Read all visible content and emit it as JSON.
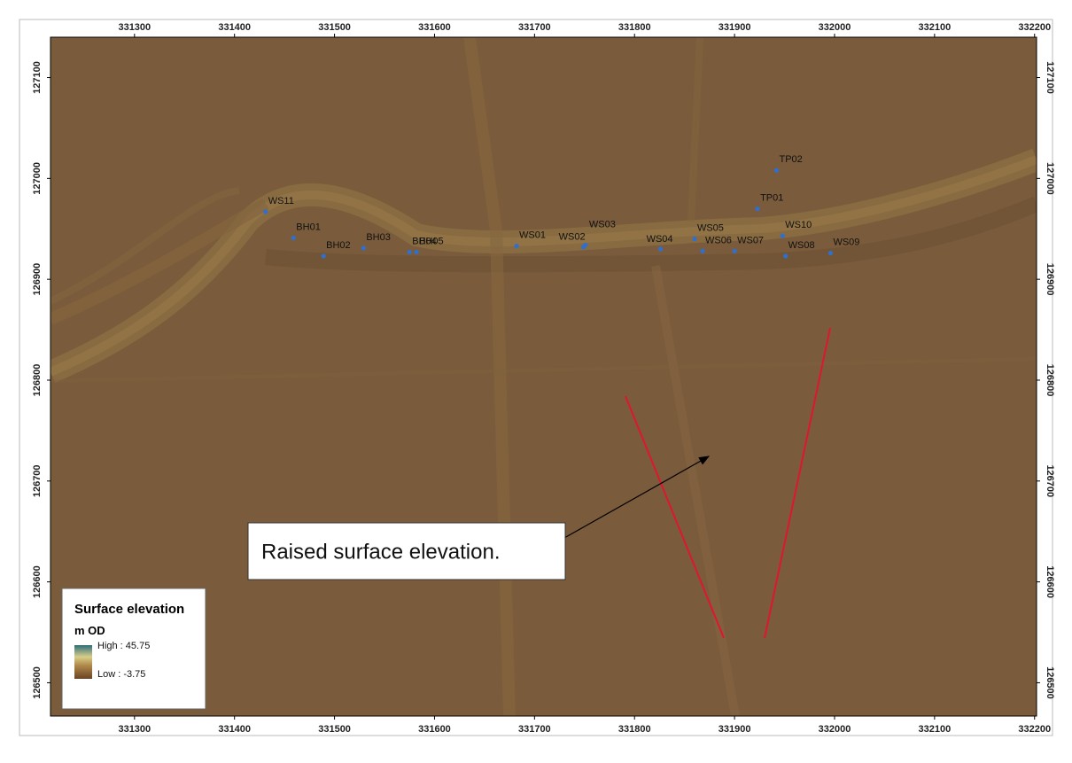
{
  "map": {
    "xlim": [
      331216,
      332202
    ],
    "ylim": [
      126467,
      127140
    ],
    "xticks": [
      331300,
      331400,
      331500,
      331600,
      331700,
      331800,
      331900,
      332000,
      332100,
      332200
    ],
    "yticks": [
      126500,
      126600,
      126700,
      126800,
      126900,
      127000,
      127100
    ],
    "points": [
      {
        "label": "WS11",
        "x": 331431,
        "y": 126967
      },
      {
        "label": "BH01",
        "x": 331459,
        "y": 126941
      },
      {
        "label": "BH02",
        "x": 331489,
        "y": 126923
      },
      {
        "label": "BH03",
        "x": 331529,
        "y": 126931
      },
      {
        "label": "BH04",
        "x": 331575,
        "y": 126927
      },
      {
        "label": "BH05",
        "x": 331582,
        "y": 126927
      },
      {
        "label": "WS01",
        "x": 331682,
        "y": 126933
      },
      {
        "label": "WS02",
        "x": 331749,
        "y": 126932
      },
      {
        "label": "WS03",
        "x": 331751,
        "y": 126934
      },
      {
        "label": "WS04",
        "x": 331826,
        "y": 126930
      },
      {
        "label": "WS05",
        "x": 331860,
        "y": 126940
      },
      {
        "label": "WS06",
        "x": 331868,
        "y": 126928
      },
      {
        "label": "WS07",
        "x": 331900,
        "y": 126928
      },
      {
        "label": "TP02",
        "x": 331942,
        "y": 127008
      },
      {
        "label": "TP01",
        "x": 331923,
        "y": 126970
      },
      {
        "label": "WS10",
        "x": 331948,
        "y": 126943
      },
      {
        "label": "WS08",
        "x": 331951,
        "y": 126923
      },
      {
        "label": "WS09",
        "x": 331996,
        "y": 126926
      }
    ],
    "annotation": "Raised surface elevation.",
    "legend": {
      "title": "Surface elevation",
      "unit": "m OD",
      "high": "High : 45.75",
      "low": "Low : -3.75"
    }
  }
}
